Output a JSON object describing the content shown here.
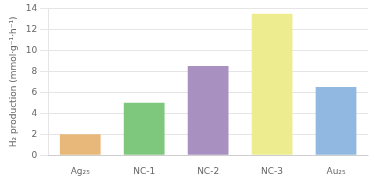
{
  "chart_data": {
    "type": "bar",
    "categories": [
      "Ag₂₅",
      "NC-1",
      "NC-2",
      "NC-3",
      "Au₂₅"
    ],
    "values": [
      2.0,
      5.0,
      8.5,
      13.5,
      6.5
    ],
    "colors": [
      "#E8B87A",
      "#7EC87E",
      "#A890C0",
      "#EDED90",
      "#90B8E0"
    ],
    "ylabel": "H₂ production (mmol·g⁻¹·h⁻¹)",
    "ylim": [
      0,
      14
    ],
    "yticks": [
      0,
      2,
      4,
      6,
      8,
      10,
      12,
      14
    ],
    "grid": true
  }
}
